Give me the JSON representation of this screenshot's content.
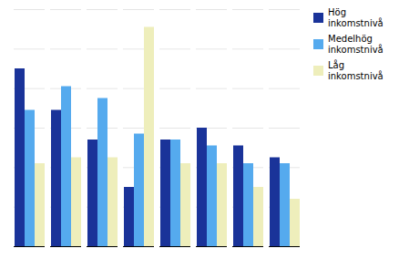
{
  "chart_data": {
    "type": "bar",
    "categories": [
      null,
      null,
      null,
      null,
      null,
      null,
      null,
      null
    ],
    "series": [
      {
        "name": "Hög\ninkomstnivå",
        "color": "#1a3399",
        "values": [
          30,
          23,
          18,
          10,
          18,
          20,
          17,
          15
        ]
      },
      {
        "name": "Medelhög\ninkomstnivå",
        "color": "#55aaee",
        "values": [
          23,
          27,
          25,
          19,
          18,
          17,
          14,
          14
        ]
      },
      {
        "name": "Låg\ninkomstnivå",
        "color": "#eeeebb",
        "values": [
          14,
          15,
          15,
          37,
          14,
          14,
          10,
          8
        ]
      }
    ],
    "ylim": [
      0,
      40
    ],
    "yticks": [
      0,
      6.666666666666667,
      13.333333333333334,
      20,
      26.666666666666668,
      33.333333333333336,
      40
    ],
    "grid": true,
    "legend": "upper right",
    "tick_labels": false
  }
}
